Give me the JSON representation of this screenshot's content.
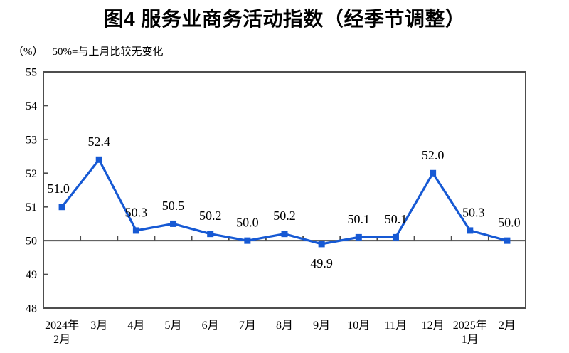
{
  "header": {
    "title": "图4 服务业商务活动指数（经季节调整）",
    "unit_label": "（%）",
    "note": "50%=与上月比较无变化"
  },
  "chart_data": {
    "type": "line",
    "title": "图4 服务业商务活动指数（经季节调整）",
    "subtitle": "（%）50%=与上月比较无变化",
    "xlabel": "",
    "ylabel": "（%）",
    "categories": [
      "2024年\n2月",
      "3月",
      "4月",
      "5月",
      "6月",
      "7月",
      "8月",
      "9月",
      "10月",
      "11月",
      "12月",
      "2025年\n1月",
      "2月"
    ],
    "values": [
      51.0,
      52.4,
      50.3,
      50.5,
      50.2,
      50.0,
      50.2,
      49.9,
      50.1,
      50.1,
      52.0,
      50.3,
      50.0
    ],
    "data_labels": [
      "51.0",
      "52.4",
      "50.3",
      "50.5",
      "50.2",
      "50.0",
      "50.2",
      "49.9",
      "50.1",
      "50.1",
      "52.0",
      "50.3",
      "50.0"
    ],
    "label_below_indices": [
      7
    ],
    "label_dx": [
      -5,
      0,
      0,
      0,
      0,
      0,
      0,
      0,
      0,
      0,
      0,
      5,
      3
    ],
    "ylim": [
      48,
      55
    ],
    "yticks": [
      48,
      49,
      50,
      51,
      52,
      53,
      54,
      55
    ],
    "baseline": 50,
    "grid": false,
    "legend": "none",
    "line_color": "#1659d4",
    "marker": "square",
    "marker_color": "#1659d4",
    "axis_color": "#4d4d4d"
  }
}
